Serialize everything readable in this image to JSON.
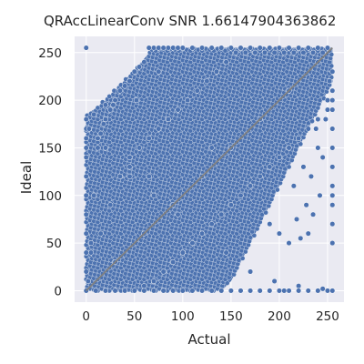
{
  "chart_data": {
    "type": "scatter",
    "title": "QRAccLinearConv SNR 1.66147904363862",
    "xlabel": "Actual",
    "ylabel": "Ideal",
    "xlim": [
      -12,
      267
    ],
    "ylim": [
      -12,
      267
    ],
    "xticks": [
      0,
      50,
      100,
      150,
      200,
      250
    ],
    "yticks": [
      0,
      50,
      100,
      150,
      200,
      250
    ],
    "grid": true,
    "background": "#eaeaf2",
    "marker_color": "#4c72b0",
    "marker_edge": "#ffffff",
    "reference_line": {
      "from": [
        0,
        0
      ],
      "to": [
        255,
        255
      ],
      "color": "#808080"
    },
    "x": [
      0,
      0,
      0,
      0,
      0,
      0,
      0,
      0,
      0,
      0,
      0,
      0,
      2,
      5,
      8,
      12,
      15,
      18,
      20,
      25,
      28,
      30,
      35,
      40,
      45,
      50,
      55,
      60,
      65,
      70,
      75,
      80,
      85,
      90,
      95,
      100,
      110,
      120,
      130,
      140,
      150,
      160,
      170,
      180,
      190,
      200,
      210,
      220,
      230,
      240,
      250,
      255,
      255,
      255,
      255,
      255,
      10,
      20,
      30,
      40,
      50,
      60,
      70,
      80,
      90,
      100,
      110,
      120,
      130,
      140,
      150,
      160,
      170,
      180,
      190,
      200,
      210,
      220,
      230,
      240,
      250,
      60,
      70,
      80,
      90,
      100,
      110,
      120,
      130,
      140,
      150,
      160,
      170,
      180,
      190,
      200,
      210,
      220,
      230,
      240,
      250,
      255,
      255,
      255,
      255,
      255,
      255,
      255,
      255,
      5,
      15,
      25,
      35,
      45,
      55,
      65,
      75,
      85,
      95,
      105,
      115,
      125,
      135,
      145,
      155,
      165,
      175,
      185,
      195,
      205,
      215,
      225,
      235,
      245,
      30,
      60,
      90,
      120,
      150,
      180,
      210,
      240,
      20,
      45,
      70,
      95,
      120,
      145,
      170,
      195,
      220,
      245,
      190,
      200,
      210,
      215,
      218,
      222,
      225,
      228,
      230,
      233,
      235,
      238,
      240,
      242,
      245,
      248,
      250,
      252,
      3,
      8,
      12,
      20,
      45,
      52,
      65,
      75,
      100,
      130
    ],
    "y": [
      0,
      20,
      40,
      60,
      80,
      100,
      120,
      140,
      150,
      160,
      170,
      180,
      10,
      50,
      100,
      150,
      165,
      175,
      180,
      190,
      195,
      200,
      210,
      215,
      220,
      230,
      235,
      240,
      255,
      255,
      255,
      255,
      255,
      255,
      255,
      255,
      255,
      255,
      255,
      255,
      255,
      255,
      255,
      255,
      255,
      255,
      255,
      255,
      255,
      255,
      255,
      200,
      150,
      100,
      50,
      0,
      0,
      0,
      0,
      0,
      0,
      0,
      0,
      0,
      0,
      0,
      0,
      0,
      0,
      0,
      0,
      0,
      0,
      0,
      0,
      0,
      0,
      0,
      0,
      0,
      0,
      5,
      10,
      20,
      30,
      40,
      50,
      60,
      70,
      80,
      90,
      100,
      110,
      120,
      130,
      140,
      150,
      160,
      170,
      180,
      190,
      230,
      210,
      190,
      170,
      130,
      110,
      90,
      70,
      40,
      60,
      90,
      120,
      140,
      150,
      160,
      170,
      180,
      190,
      200,
      210,
      220,
      230,
      240,
      250,
      250,
      250,
      250,
      250,
      250,
      250,
      250,
      250,
      250,
      30,
      60,
      90,
      120,
      150,
      180,
      210,
      240,
      150,
      120,
      100,
      80,
      60,
      40,
      20,
      10,
      5,
      2,
      70,
      60,
      50,
      110,
      75,
      55,
      130,
      90,
      60,
      120,
      80,
      170,
      150,
      100,
      140,
      180,
      200,
      220,
      170,
      185,
      160,
      195,
      130,
      200,
      120,
      230,
      40,
      150
    ],
    "extra_points": [
      {
        "x": 255,
        "y": 0
      },
      {
        "x": 0,
        "y": 255
      },
      {
        "x": 230,
        "y": 0
      },
      {
        "x": 220,
        "y": 0
      },
      {
        "x": 210,
        "y": 0
      },
      {
        "x": 205,
        "y": 0
      },
      {
        "x": 200,
        "y": 0
      }
    ]
  }
}
